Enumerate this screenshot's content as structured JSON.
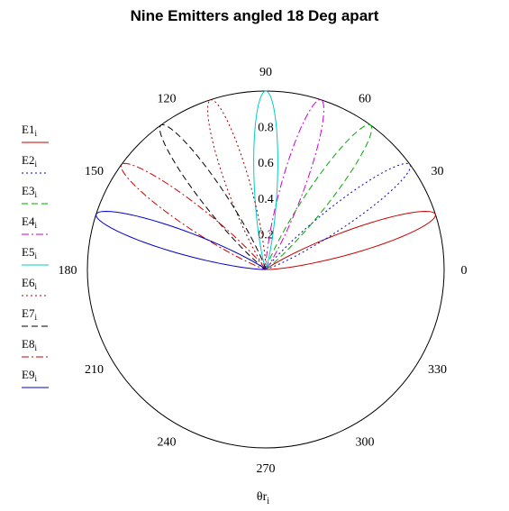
{
  "chart_data": {
    "type": "polar",
    "title": "Nine Emitters angled 18 Deg apart",
    "xlabel": "θr",
    "xlabel_sub": "i",
    "angle_ticks": [
      "0",
      "30",
      "60",
      "90",
      "120",
      "150",
      "180",
      "210",
      "240",
      "270",
      "300",
      "330"
    ],
    "angle_tick_values": [
      0,
      30,
      60,
      90,
      120,
      150,
      180,
      210,
      240,
      270,
      300,
      330
    ],
    "radial_ticks": [
      "0.2",
      "0.4",
      "0.6",
      "0.8"
    ],
    "radial_tick_values": [
      0.2,
      0.4,
      0.6,
      0.8
    ],
    "rlim": [
      0,
      1
    ],
    "grid": false,
    "legend_position": "left",
    "lobe_shape": "cos^n",
    "lobe_exponent": 80,
    "series": [
      {
        "name": "E1",
        "sub": "i",
        "center_deg": 18,
        "peak": 1.0,
        "color": "#cc0000",
        "dash": "solid"
      },
      {
        "name": "E2",
        "sub": "i",
        "center_deg": 36,
        "peak": 1.0,
        "color": "#0000cc",
        "dash": "dot"
      },
      {
        "name": "E3",
        "sub": "i",
        "center_deg": 54,
        "peak": 1.0,
        "color": "#00aa00",
        "dash": "dash"
      },
      {
        "name": "E4",
        "sub": "i",
        "center_deg": 72,
        "peak": 1.0,
        "color": "#cc00cc",
        "dash": "dashdot"
      },
      {
        "name": "E5",
        "sub": "i",
        "center_deg": 90,
        "peak": 1.0,
        "color": "#00cccc",
        "dash": "solid"
      },
      {
        "name": "E6",
        "sub": "i",
        "center_deg": 108,
        "peak": 1.0,
        "color": "#990000",
        "dash": "dot"
      },
      {
        "name": "E7",
        "sub": "i",
        "center_deg": 126,
        "peak": 1.0,
        "color": "#000000",
        "dash": "dash"
      },
      {
        "name": "E8",
        "sub": "i",
        "center_deg": 144,
        "peak": 1.0,
        "color": "#cc0000",
        "dash": "dashdot"
      },
      {
        "name": "E9",
        "sub": "i",
        "center_deg": 162,
        "peak": 1.0,
        "color": "#0000cc",
        "dash": "solid"
      }
    ]
  }
}
